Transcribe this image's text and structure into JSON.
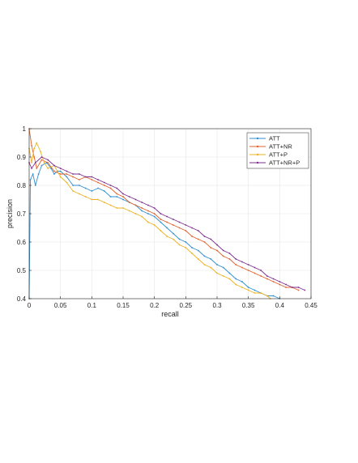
{
  "chart_data": {
    "type": "line",
    "xlabel": "recall",
    "ylabel": "precision",
    "xlim": [
      0,
      0.45
    ],
    "ylim": [
      0.4,
      1
    ],
    "xticks": [
      "0",
      "0.05",
      "0.1",
      "0.15",
      "0.2",
      "0.25",
      "0.3",
      "0.35",
      "0.4",
      "0.45"
    ],
    "yticks": [
      "0.4",
      "0.5",
      "0.6",
      "0.7",
      "0.8",
      "0.9",
      "1"
    ],
    "grid": true,
    "legend_position": "top-right",
    "series": [
      {
        "name": "ATT",
        "color": "#2e8fd0",
        "points": [
          [
            0.0,
            0.4
          ],
          [
            0.002,
            0.82
          ],
          [
            0.006,
            0.84
          ],
          [
            0.01,
            0.8
          ],
          [
            0.015,
            0.84
          ],
          [
            0.02,
            0.87
          ],
          [
            0.028,
            0.88
          ],
          [
            0.035,
            0.86
          ],
          [
            0.04,
            0.84
          ],
          [
            0.045,
            0.85
          ],
          [
            0.05,
            0.85
          ],
          [
            0.06,
            0.83
          ],
          [
            0.07,
            0.8
          ],
          [
            0.08,
            0.8
          ],
          [
            0.09,
            0.79
          ],
          [
            0.1,
            0.78
          ],
          [
            0.11,
            0.79
          ],
          [
            0.12,
            0.78
          ],
          [
            0.13,
            0.76
          ],
          [
            0.14,
            0.76
          ],
          [
            0.15,
            0.75
          ],
          [
            0.16,
            0.74
          ],
          [
            0.17,
            0.73
          ],
          [
            0.18,
            0.71
          ],
          [
            0.19,
            0.7
          ],
          [
            0.2,
            0.69
          ],
          [
            0.21,
            0.67
          ],
          [
            0.22,
            0.65
          ],
          [
            0.23,
            0.63
          ],
          [
            0.24,
            0.61
          ],
          [
            0.25,
            0.6
          ],
          [
            0.26,
            0.58
          ],
          [
            0.27,
            0.57
          ],
          [
            0.28,
            0.55
          ],
          [
            0.29,
            0.54
          ],
          [
            0.3,
            0.52
          ],
          [
            0.31,
            0.51
          ],
          [
            0.32,
            0.49
          ],
          [
            0.33,
            0.47
          ],
          [
            0.34,
            0.46
          ],
          [
            0.35,
            0.44
          ],
          [
            0.36,
            0.43
          ],
          [
            0.37,
            0.42
          ],
          [
            0.38,
            0.41
          ],
          [
            0.39,
            0.41
          ],
          [
            0.4,
            0.4
          ]
        ]
      },
      {
        "name": "ATT+NR",
        "color": "#e0622c",
        "points": [
          [
            0.0,
            1.0
          ],
          [
            0.004,
            0.94
          ],
          [
            0.008,
            0.9
          ],
          [
            0.012,
            0.86
          ],
          [
            0.02,
            0.89
          ],
          [
            0.03,
            0.88
          ],
          [
            0.04,
            0.85
          ],
          [
            0.05,
            0.84
          ],
          [
            0.06,
            0.84
          ],
          [
            0.07,
            0.83
          ],
          [
            0.08,
            0.82
          ],
          [
            0.09,
            0.83
          ],
          [
            0.1,
            0.82
          ],
          [
            0.11,
            0.81
          ],
          [
            0.12,
            0.8
          ],
          [
            0.13,
            0.79
          ],
          [
            0.14,
            0.77
          ],
          [
            0.15,
            0.76
          ],
          [
            0.16,
            0.74
          ],
          [
            0.17,
            0.73
          ],
          [
            0.18,
            0.72
          ],
          [
            0.19,
            0.71
          ],
          [
            0.2,
            0.7
          ],
          [
            0.21,
            0.68
          ],
          [
            0.22,
            0.67
          ],
          [
            0.23,
            0.66
          ],
          [
            0.24,
            0.65
          ],
          [
            0.25,
            0.64
          ],
          [
            0.26,
            0.62
          ],
          [
            0.27,
            0.61
          ],
          [
            0.28,
            0.6
          ],
          [
            0.29,
            0.58
          ],
          [
            0.3,
            0.57
          ],
          [
            0.31,
            0.55
          ],
          [
            0.32,
            0.54
          ],
          [
            0.33,
            0.52
          ],
          [
            0.34,
            0.51
          ],
          [
            0.35,
            0.5
          ],
          [
            0.36,
            0.49
          ],
          [
            0.37,
            0.48
          ],
          [
            0.38,
            0.47
          ],
          [
            0.39,
            0.46
          ],
          [
            0.4,
            0.45
          ],
          [
            0.41,
            0.44
          ],
          [
            0.42,
            0.44
          ],
          [
            0.43,
            0.43
          ]
        ]
      },
      {
        "name": "ATT+P",
        "color": "#edb120",
        "points": [
          [
            0.0,
            0.93
          ],
          [
            0.004,
            0.88
          ],
          [
            0.008,
            0.93
          ],
          [
            0.012,
            0.95
          ],
          [
            0.018,
            0.92
          ],
          [
            0.024,
            0.88
          ],
          [
            0.03,
            0.86
          ],
          [
            0.04,
            0.87
          ],
          [
            0.05,
            0.83
          ],
          [
            0.06,
            0.81
          ],
          [
            0.07,
            0.78
          ],
          [
            0.08,
            0.77
          ],
          [
            0.09,
            0.76
          ],
          [
            0.1,
            0.75
          ],
          [
            0.11,
            0.75
          ],
          [
            0.12,
            0.74
          ],
          [
            0.13,
            0.73
          ],
          [
            0.14,
            0.72
          ],
          [
            0.15,
            0.72
          ],
          [
            0.16,
            0.71
          ],
          [
            0.17,
            0.7
          ],
          [
            0.18,
            0.69
          ],
          [
            0.19,
            0.67
          ],
          [
            0.2,
            0.66
          ],
          [
            0.21,
            0.64
          ],
          [
            0.22,
            0.62
          ],
          [
            0.23,
            0.61
          ],
          [
            0.24,
            0.59
          ],
          [
            0.25,
            0.58
          ],
          [
            0.26,
            0.56
          ],
          [
            0.27,
            0.54
          ],
          [
            0.28,
            0.52
          ],
          [
            0.29,
            0.51
          ],
          [
            0.3,
            0.49
          ],
          [
            0.31,
            0.48
          ],
          [
            0.32,
            0.47
          ],
          [
            0.33,
            0.45
          ],
          [
            0.34,
            0.44
          ],
          [
            0.35,
            0.43
          ],
          [
            0.36,
            0.42
          ],
          [
            0.37,
            0.42
          ],
          [
            0.38,
            0.41
          ],
          [
            0.385,
            0.4
          ]
        ]
      },
      {
        "name": "ATT+NR+P",
        "color": "#7e2f8e",
        "points": [
          [
            0.0,
            0.88
          ],
          [
            0.004,
            0.86
          ],
          [
            0.01,
            0.88
          ],
          [
            0.02,
            0.9
          ],
          [
            0.03,
            0.89
          ],
          [
            0.04,
            0.87
          ],
          [
            0.05,
            0.86
          ],
          [
            0.06,
            0.85
          ],
          [
            0.07,
            0.84
          ],
          [
            0.08,
            0.84
          ],
          [
            0.09,
            0.83
          ],
          [
            0.1,
            0.83
          ],
          [
            0.11,
            0.82
          ],
          [
            0.12,
            0.81
          ],
          [
            0.13,
            0.8
          ],
          [
            0.14,
            0.79
          ],
          [
            0.15,
            0.77
          ],
          [
            0.16,
            0.76
          ],
          [
            0.17,
            0.75
          ],
          [
            0.18,
            0.74
          ],
          [
            0.19,
            0.73
          ],
          [
            0.2,
            0.72
          ],
          [
            0.21,
            0.7
          ],
          [
            0.22,
            0.69
          ],
          [
            0.23,
            0.68
          ],
          [
            0.24,
            0.67
          ],
          [
            0.25,
            0.66
          ],
          [
            0.26,
            0.65
          ],
          [
            0.27,
            0.64
          ],
          [
            0.28,
            0.62
          ],
          [
            0.29,
            0.61
          ],
          [
            0.3,
            0.59
          ],
          [
            0.31,
            0.57
          ],
          [
            0.32,
            0.56
          ],
          [
            0.33,
            0.54
          ],
          [
            0.34,
            0.53
          ],
          [
            0.35,
            0.52
          ],
          [
            0.36,
            0.51
          ],
          [
            0.37,
            0.5
          ],
          [
            0.38,
            0.48
          ],
          [
            0.39,
            0.47
          ],
          [
            0.4,
            0.46
          ],
          [
            0.41,
            0.45
          ],
          [
            0.42,
            0.44
          ],
          [
            0.43,
            0.44
          ],
          [
            0.44,
            0.43
          ]
        ]
      }
    ]
  }
}
